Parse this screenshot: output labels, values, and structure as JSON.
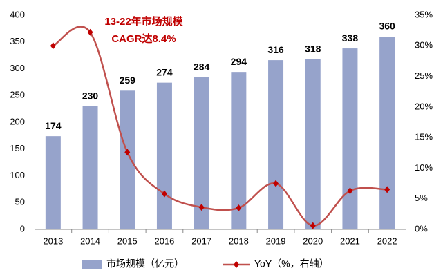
{
  "chart_data": {
    "type": "bar",
    "annotations": [
      "13-22年市场规模",
      "CAGR达8.4%"
    ],
    "categories": [
      "2013",
      "2014",
      "2015",
      "2016",
      "2017",
      "2018",
      "2019",
      "2020",
      "2021",
      "2022"
    ],
    "series": [
      {
        "name": "市场规模（亿元）",
        "type": "bar",
        "color": "#96a3cb",
        "values": [
          174,
          230,
          259,
          274,
          284,
          294,
          316,
          318,
          338,
          360
        ]
      },
      {
        "name": "YoY（%，右轴）",
        "type": "line",
        "axis": "y2",
        "color": "#c0504d",
        "values": [
          30,
          32.2,
          12.6,
          5.8,
          3.6,
          3.5,
          7.5,
          0.6,
          6.3,
          6.5
        ]
      }
    ],
    "ylim": [
      0,
      400
    ],
    "yticks": [
      0,
      50,
      100,
      150,
      200,
      250,
      300,
      350,
      400
    ],
    "y2lim": [
      0,
      35
    ],
    "y2ticks": [
      {
        "value": 0,
        "label": "0%"
      },
      {
        "value": 5,
        "label": "5%"
      },
      {
        "value": 10,
        "label": "10%"
      },
      {
        "value": 15,
        "label": "15%"
      },
      {
        "value": 20,
        "label": "20%"
      },
      {
        "value": 25,
        "label": "25%"
      },
      {
        "value": 30,
        "label": "30%"
      },
      {
        "value": 35,
        "label": "35%"
      }
    ],
    "grid": false
  }
}
